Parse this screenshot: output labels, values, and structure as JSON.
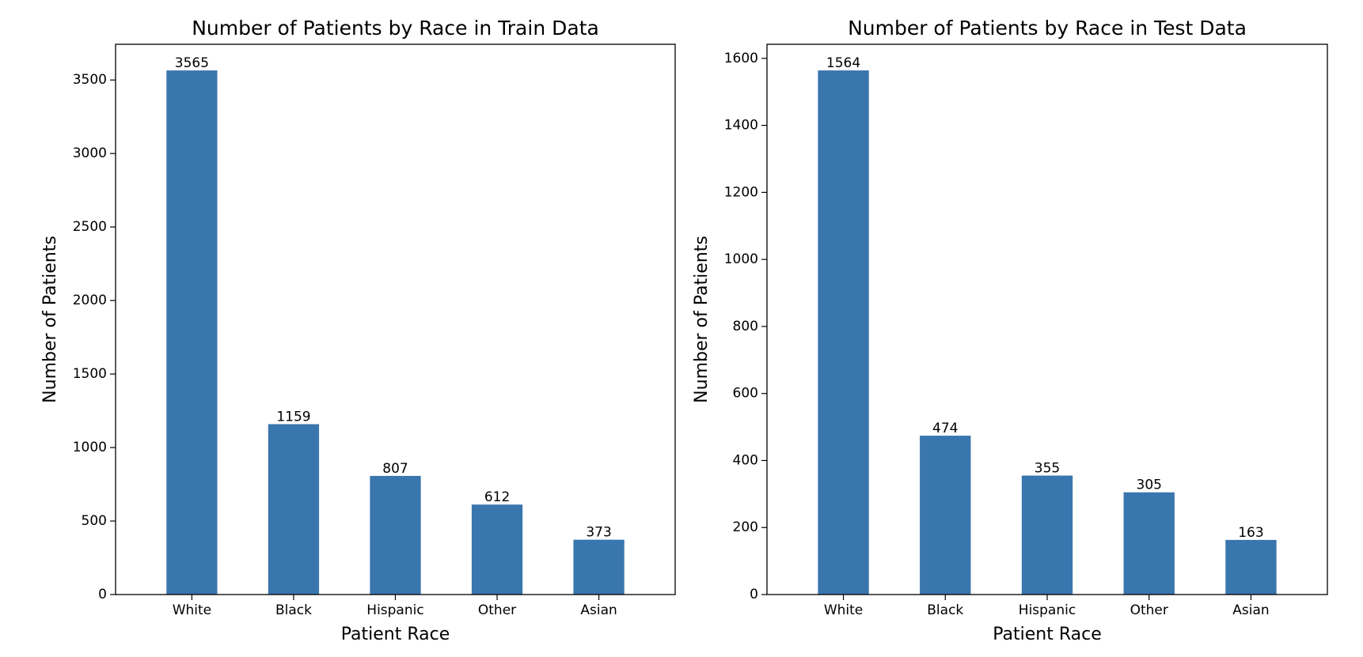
{
  "chart_data": [
    {
      "type": "bar",
      "title": "Number of Patients by Race in Train Data",
      "xlabel": "Patient Race",
      "ylabel": "Number of Patients",
      "categories": [
        "White",
        "Black",
        "Hispanic",
        "Other",
        "Asian"
      ],
      "values": [
        3565,
        1159,
        807,
        612,
        373
      ],
      "data_labels": [
        "3565",
        "1159",
        "807",
        "612",
        "373"
      ],
      "yticks": [
        0,
        500,
        1000,
        1500,
        2000,
        2500,
        3000,
        3500
      ],
      "ylim": [
        0,
        3743
      ],
      "grid": false,
      "legend": "none",
      "bar_color": "#3a76ae"
    },
    {
      "type": "bar",
      "title": "Number of Patients by Race in Test Data",
      "xlabel": "Patient Race",
      "ylabel": "Number of Patients",
      "categories": [
        "White",
        "Black",
        "Hispanic",
        "Other",
        "Asian"
      ],
      "values": [
        1564,
        474,
        355,
        305,
        163
      ],
      "data_labels": [
        "1564",
        "474",
        "355",
        "305",
        "163"
      ],
      "yticks": [
        0,
        200,
        400,
        600,
        800,
        1000,
        1200,
        1400,
        1600
      ],
      "ylim": [
        0,
        1642
      ],
      "grid": false,
      "legend": "none",
      "bar_color": "#3a76ae"
    }
  ]
}
